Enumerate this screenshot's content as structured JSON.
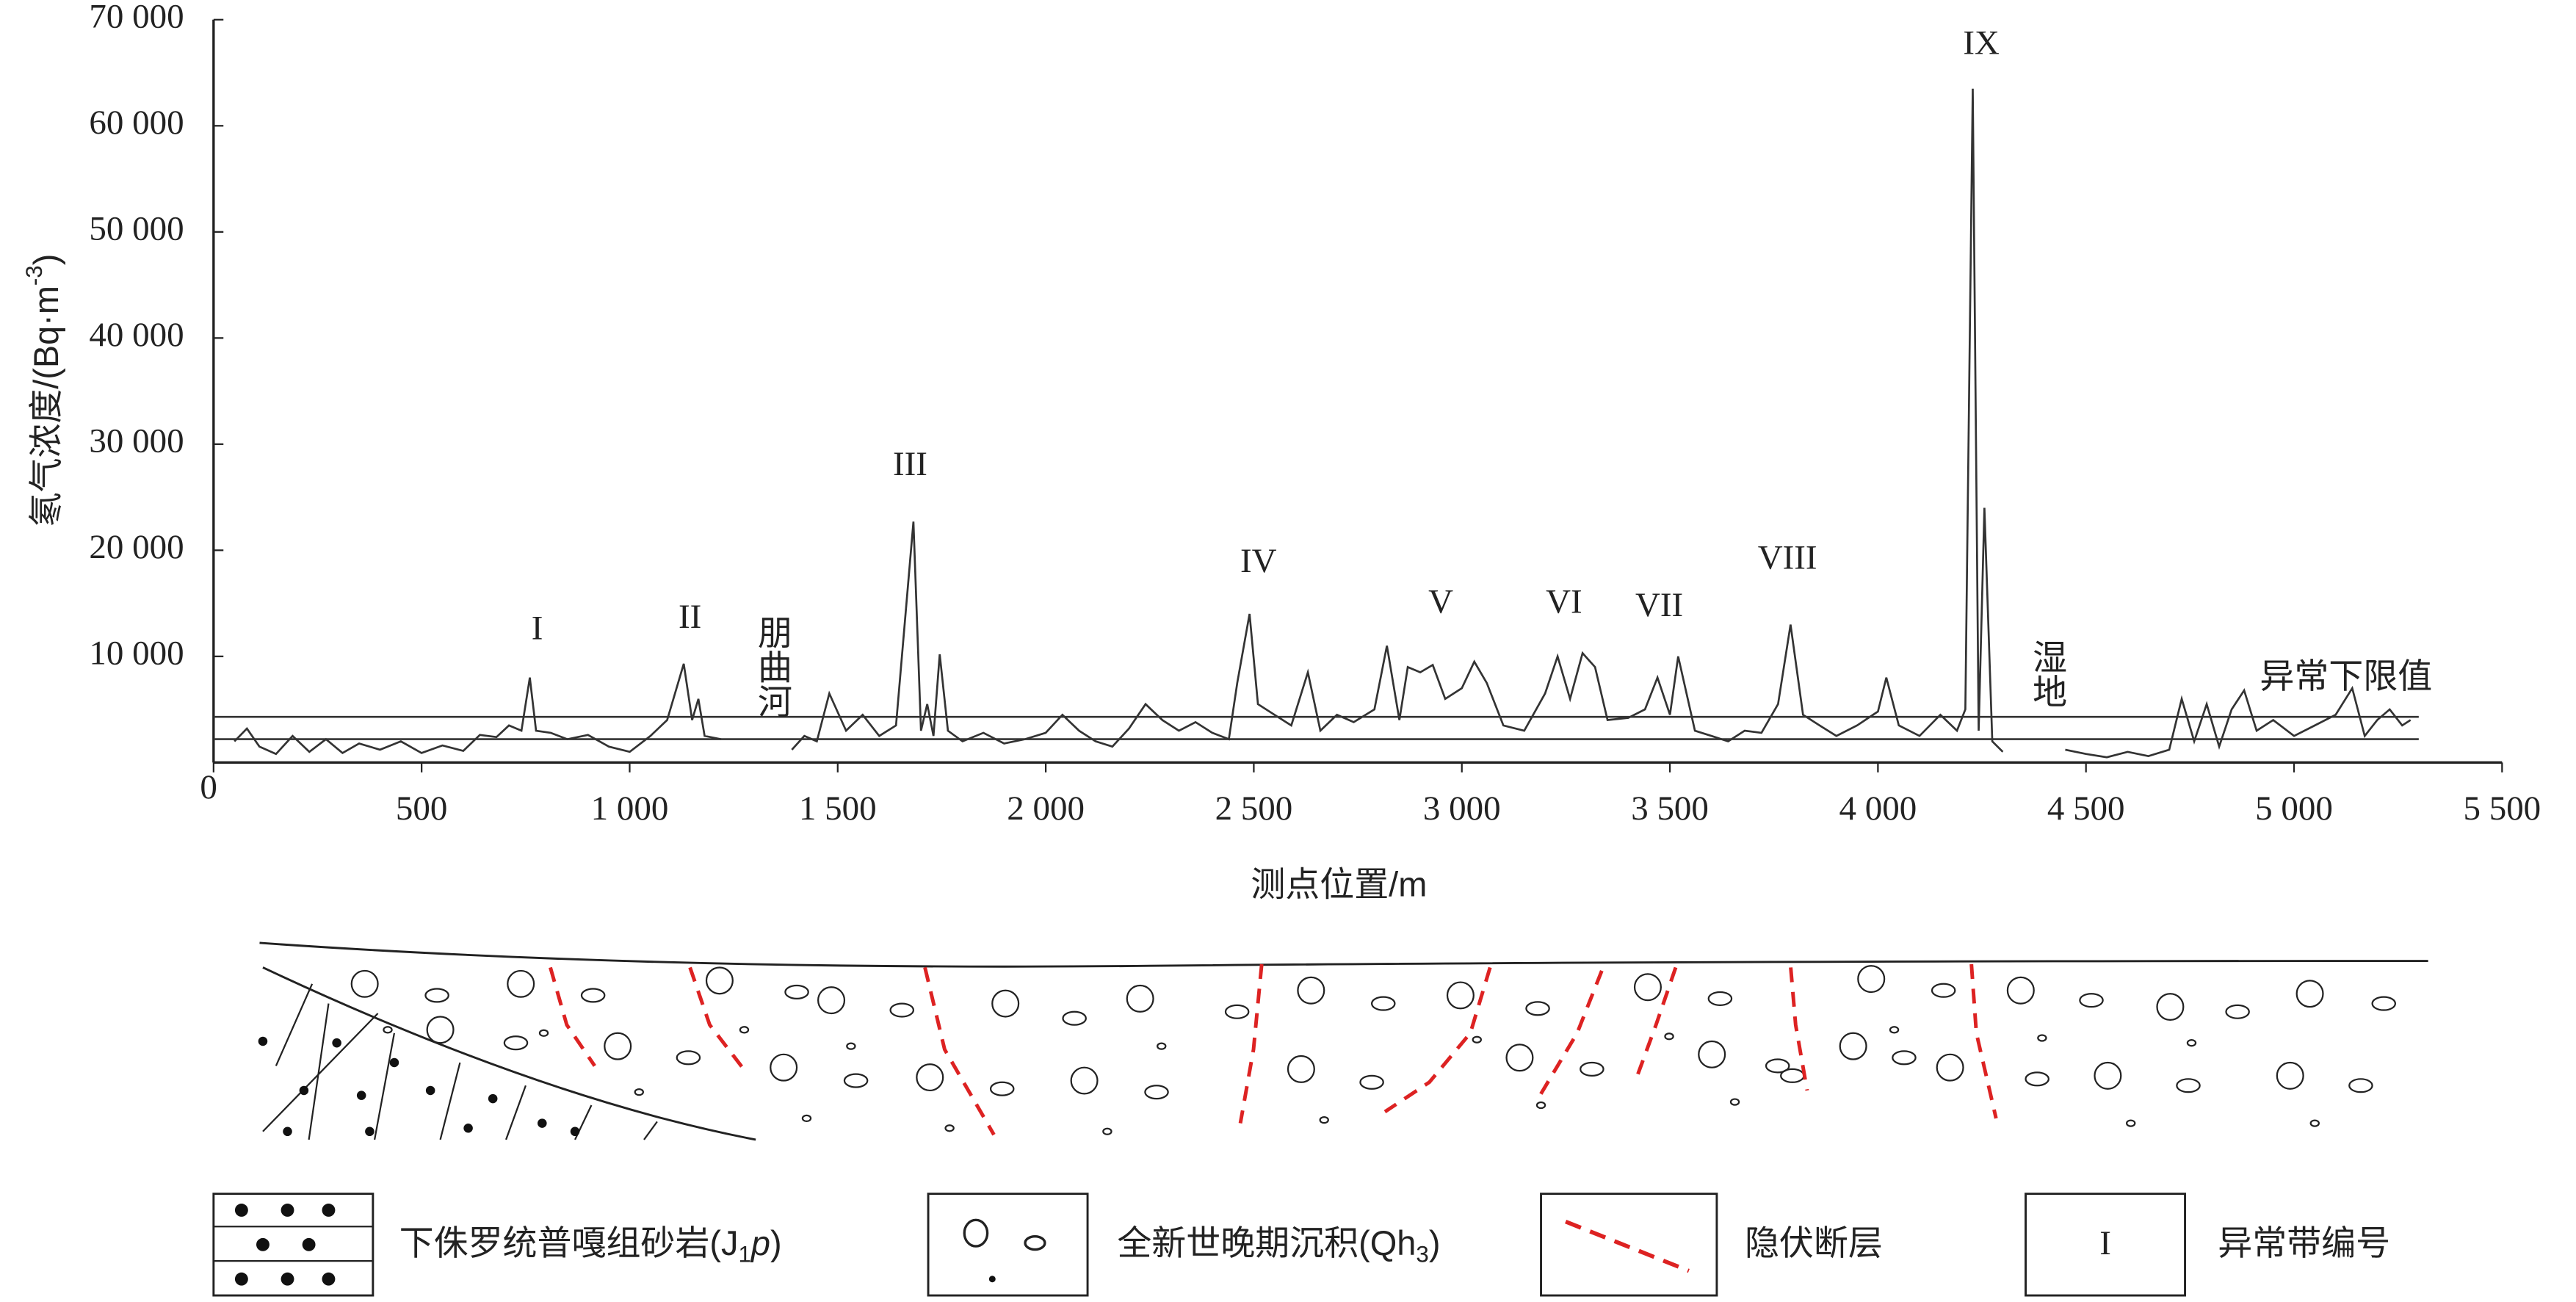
{
  "chart_data": {
    "type": "line",
    "y_label_parts": [
      "氡气浓度/(Bq·m",
      "-3",
      ")"
    ],
    "x_label": "测点位置/m",
    "xlim": [
      0,
      5500
    ],
    "ylim": [
      0,
      70000
    ],
    "xticks": [
      0,
      500,
      {
        "value": 1000,
        "label": "1 000"
      },
      {
        "value": 1500,
        "label": "1 500"
      },
      {
        "value": 2000,
        "label": "2 000"
      },
      {
        "value": 2500,
        "label": "2 500"
      },
      {
        "value": 3000,
        "label": "3 000"
      },
      {
        "value": 3500,
        "label": "3 500"
      },
      {
        "value": 4000,
        "label": "4 000"
      },
      {
        "value": 4500,
        "label": "4 500"
      },
      {
        "value": 5000,
        "label": "5 000"
      },
      {
        "value": 5500,
        "label": "5 500"
      }
    ],
    "yticks": [
      {
        "value": 10000,
        "label": "10 000"
      },
      {
        "value": 20000,
        "label": "20 000"
      },
      {
        "value": 30000,
        "label": "30 000"
      },
      {
        "value": 40000,
        "label": "40 000"
      },
      {
        "value": 50000,
        "label": "50 000"
      },
      {
        "value": 60000,
        "label": "60 000"
      },
      {
        "value": 70000,
        "label": "70 000"
      }
    ],
    "color": "#333333",
    "x": [
      50,
      80,
      110,
      150,
      190,
      230,
      270,
      310,
      350,
      400,
      450,
      500,
      550,
      600,
      640,
      680,
      710,
      740,
      760,
      775,
      810,
      850,
      900,
      950,
      1000,
      1050,
      1090,
      1130,
      1150,
      1165,
      1180,
      1220,
      1300,
      1390,
      1420,
      1450,
      1480,
      1520,
      1560,
      1600,
      1640,
      1682,
      1700,
      1715,
      1730,
      1745,
      1765,
      1800,
      1850,
      1900,
      1950,
      2000,
      2040,
      2080,
      2120,
      2160,
      2200,
      2240,
      2280,
      2320,
      2360,
      2400,
      2440,
      2460,
      2490,
      2510,
      2550,
      2590,
      2630,
      2660,
      2700,
      2740,
      2790,
      2820,
      2850,
      2870,
      2900,
      2930,
      2960,
      3000,
      3030,
      3060,
      3100,
      3150,
      3200,
      3230,
      3260,
      3290,
      3320,
      3350,
      3400,
      3440,
      3470,
      3500,
      3520,
      3560,
      3600,
      3640,
      3680,
      3720,
      3760,
      3790,
      3820,
      3860,
      3900,
      3950,
      4000,
      4020,
      4050,
      4100,
      4150,
      4190,
      4210,
      4228,
      4242,
      4256,
      4275,
      4300,
      4380,
      4450,
      4500,
      4550,
      4600,
      4650,
      4700,
      4730,
      4760,
      4790,
      4820,
      4850,
      4880,
      4910,
      4950,
      5000,
      5050,
      5100,
      5140,
      5170,
      5200,
      5230,
      5260,
      5280
    ],
    "values": [
      2000,
      3200,
      1500,
      800,
      2500,
      1000,
      2200,
      900,
      1800,
      1200,
      2000,
      900,
      1600,
      1100,
      2600,
      2400,
      3500,
      3000,
      8000,
      3000,
      2800,
      2200,
      2600,
      1500,
      1000,
      2500,
      4000,
      9300,
      4000,
      6000,
      2500,
      2200,
      null,
      1200,
      2500,
      2000,
      6500,
      3000,
      4500,
      2500,
      3500,
      22700,
      3000,
      5500,
      2500,
      10200,
      3000,
      2000,
      2800,
      1800,
      2200,
      2800,
      4500,
      3000,
      2000,
      1500,
      3200,
      5500,
      4000,
      3000,
      3800,
      2800,
      2200,
      7500,
      14000,
      5500,
      4500,
      3500,
      8500,
      3000,
      4500,
      3800,
      5000,
      11000,
      4000,
      9000,
      8500,
      9200,
      6000,
      7000,
      9500,
      7500,
      3500,
      3000,
      6500,
      10000,
      6000,
      10300,
      9000,
      4000,
      4200,
      5000,
      8000,
      4500,
      10000,
      3000,
      2500,
      2000,
      3000,
      2800,
      5500,
      13000,
      4500,
      3500,
      2500,
      3500,
      4800,
      8000,
      3500,
      2500,
      4500,
      3000,
      5000,
      63500,
      3000,
      24000,
      2000,
      1000,
      null,
      1200,
      800,
      500,
      1000,
      600,
      1200,
      6000,
      2000,
      5500,
      1500,
      5000,
      6800,
      3000,
      4000,
      2500,
      3500,
      4500,
      7000,
      2500,
      4000,
      5000,
      3500,
      4000
    ],
    "reference_lines": [
      {
        "value": 4300,
        "label": "异常下限值"
      },
      {
        "value": 2200
      }
    ],
    "annotations": [
      {
        "text": "I"
      },
      {
        "text": "II"
      },
      {
        "text": "III"
      },
      {
        "text": "IV"
      },
      {
        "text": "V"
      },
      {
        "text": "VI"
      },
      {
        "text": "VII"
      },
      {
        "text": "VIII"
      },
      {
        "text": "IX"
      },
      {
        "text": "朋曲河"
      },
      {
        "text": "湿地"
      }
    ]
  },
  "legend": [
    {
      "parts": [
        "下侏罗统普嘎组砂岩(J",
        "1",
        "p",
        ")"
      ]
    },
    {
      "parts": [
        "全新世晚期沉积(Qh",
        "3",
        ")"
      ]
    },
    {
      "parts": [
        "隐伏断层"
      ]
    },
    {
      "symbol": "I",
      "parts": [
        "异常带编号"
      ]
    }
  ]
}
